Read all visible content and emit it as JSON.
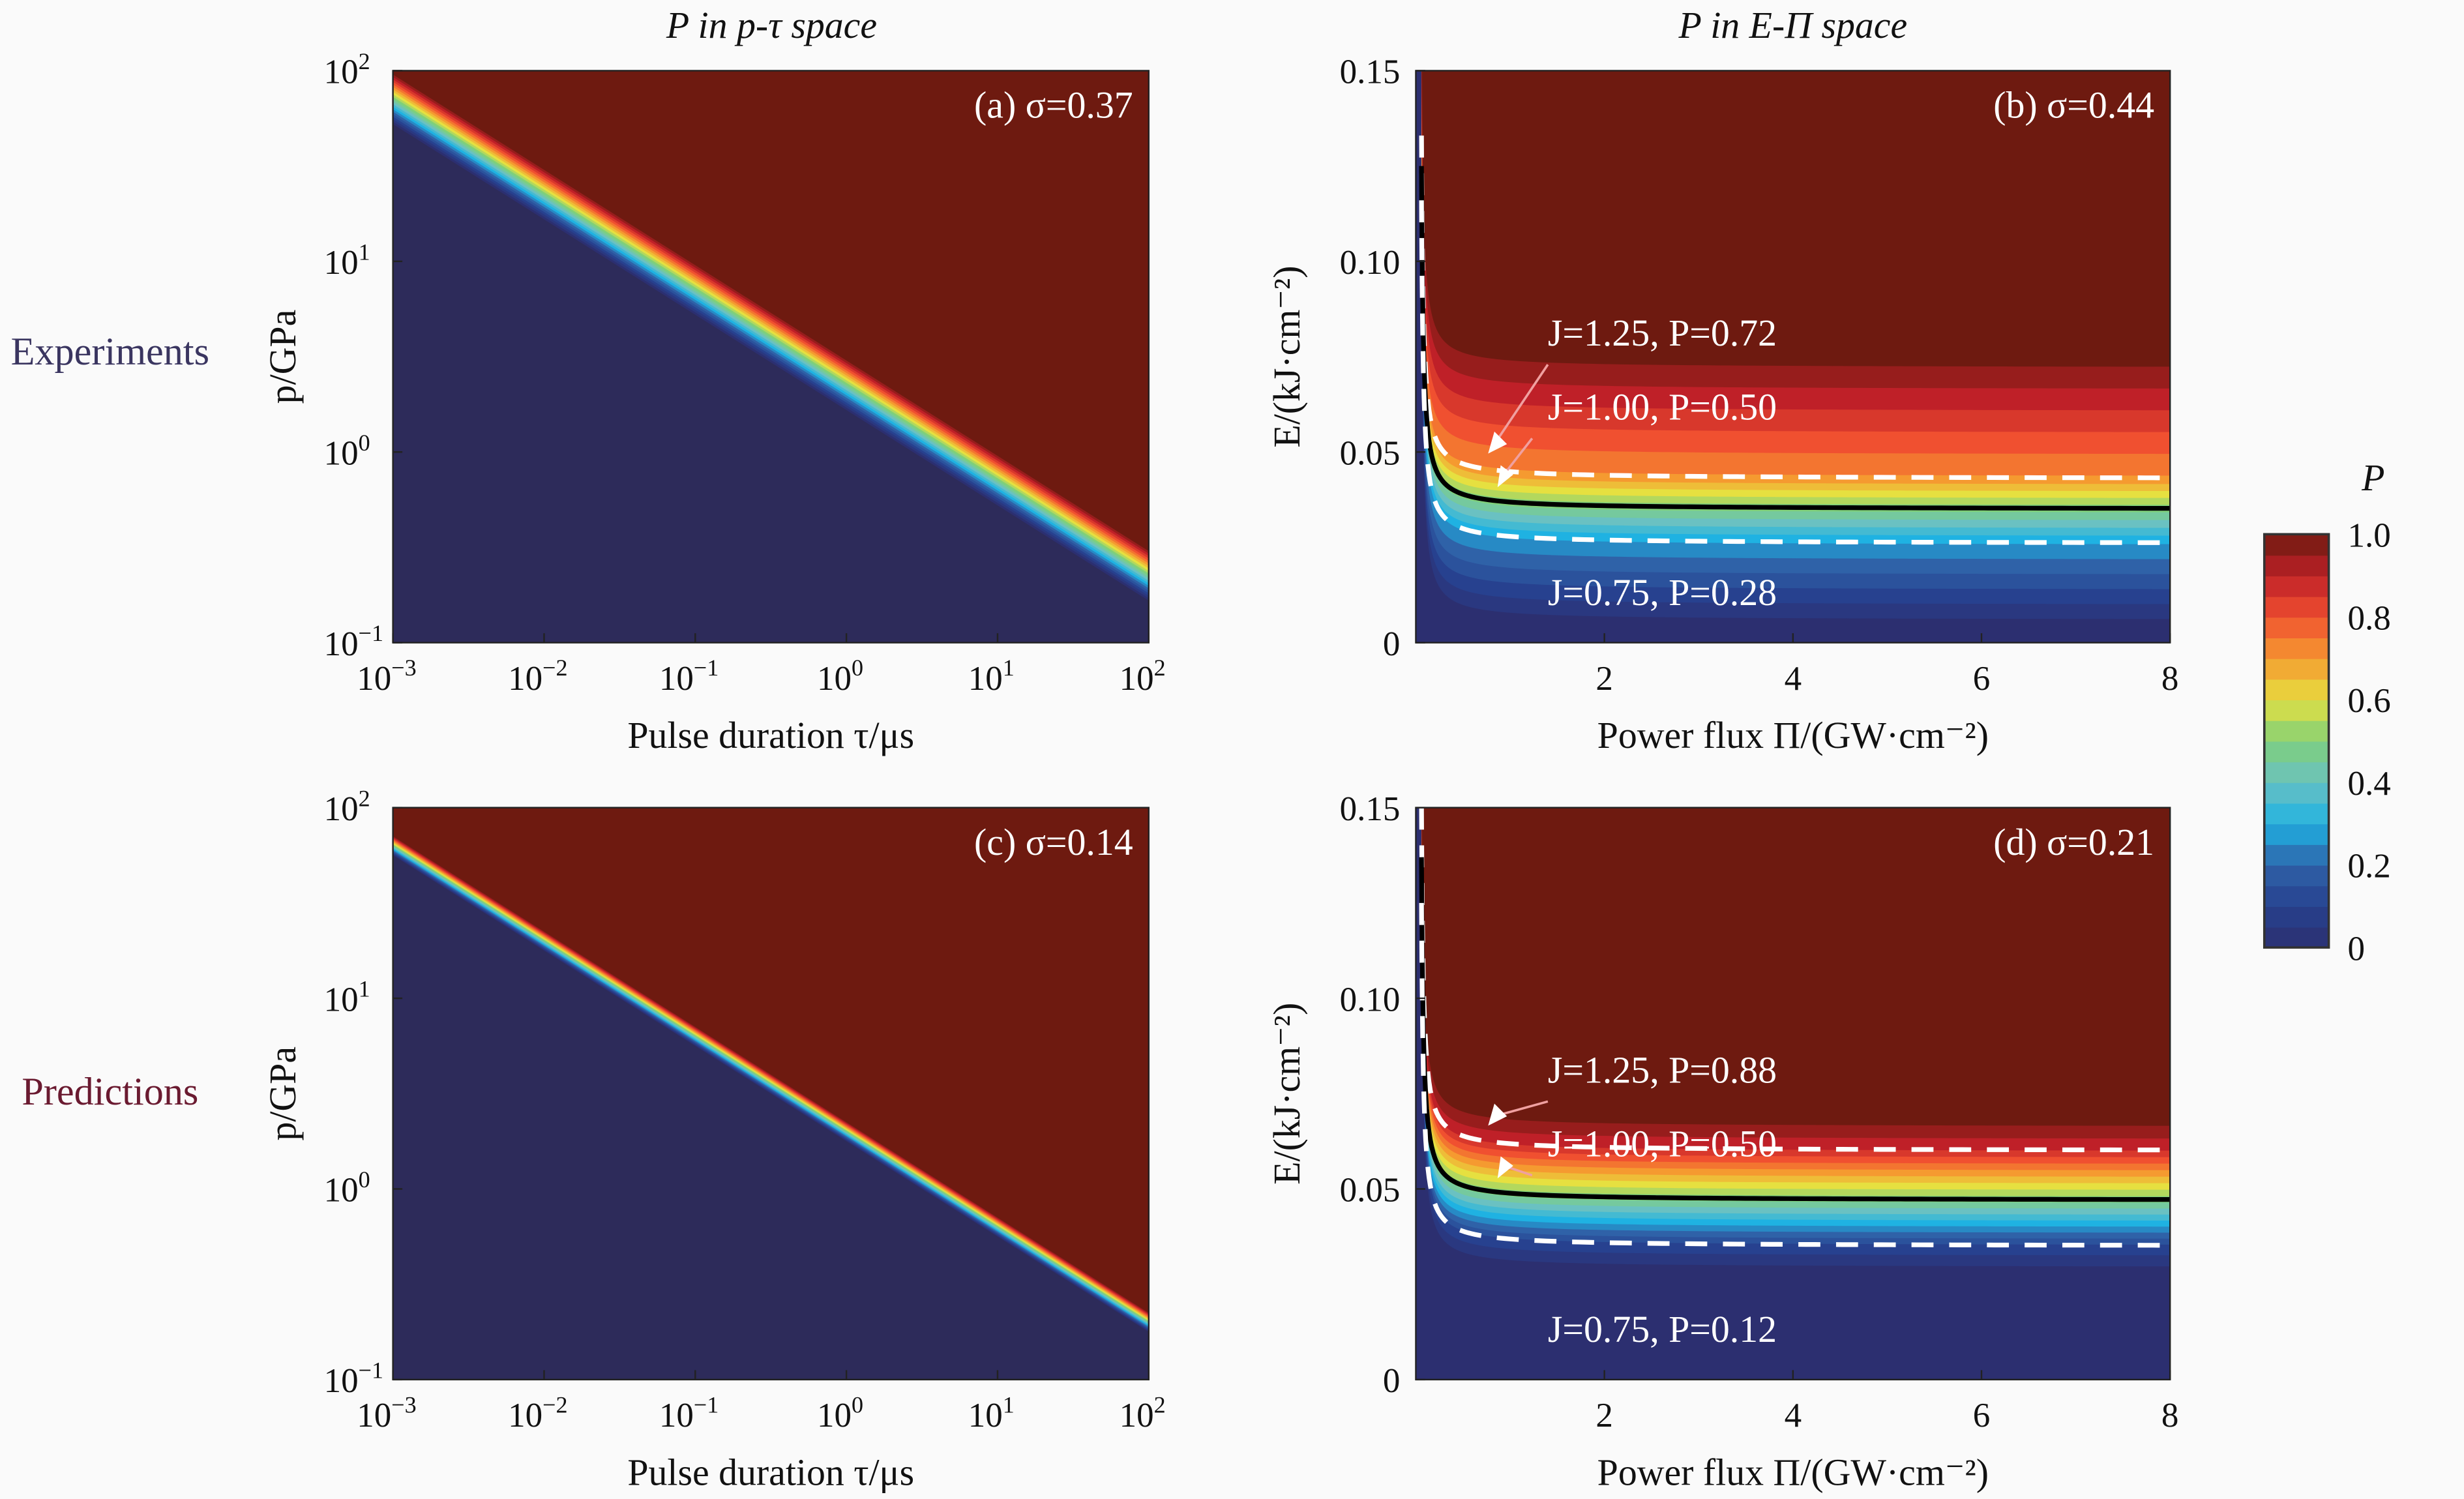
{
  "figure": {
    "row_labels": [
      {
        "text": "Experiments",
        "color": "#3a3560"
      },
      {
        "text": "Predictions",
        "color": "#6a1a30"
      }
    ],
    "column_titles": [
      "P in p-τ space",
      "P in E-Π space"
    ]
  },
  "colormap": {
    "stops": [
      [
        0,
        "#2c2f70"
      ],
      [
        0.1,
        "#27418f"
      ],
      [
        0.2,
        "#2f62a8"
      ],
      [
        0.3,
        "#1fb2e2"
      ],
      [
        0.4,
        "#6ac1c2"
      ],
      [
        0.5,
        "#7fd07a"
      ],
      [
        0.6,
        "#e6e040"
      ],
      [
        0.7,
        "#f59a30"
      ],
      [
        0.8,
        "#f05030"
      ],
      [
        0.9,
        "#bf2028"
      ],
      [
        1.0,
        "#6e1a10"
      ]
    ],
    "background_low": "#2d2b5a",
    "background_high": "#6e1a10"
  },
  "colorbar": {
    "title": "P",
    "ticks": [
      "0",
      "0.2",
      "0.4",
      "0.6",
      "0.8",
      "1.0"
    ],
    "range": [
      0,
      1
    ],
    "levels": 20
  },
  "chart_data": [
    {
      "id": "a",
      "type": "heatmap",
      "scale": "log-log",
      "panel_label": "(a) σ=0.37",
      "title": "P in p-τ space",
      "xlabel": "Pulse duration τ/μs",
      "ylabel": "p/GPa",
      "xlim_log10": [
        -3,
        2
      ],
      "ylim_log10": [
        -1,
        2
      ],
      "x_ticks": [
        {
          "base": "10",
          "exp": "−3"
        },
        {
          "base": "10",
          "exp": "−2"
        },
        {
          "base": "10",
          "exp": "−1"
        },
        {
          "base": "10",
          "exp": "0"
        },
        {
          "base": "10",
          "exp": "1"
        },
        {
          "base": "10",
          "exp": "2"
        }
      ],
      "y_ticks": [
        {
          "base": "10",
          "exp": "−1"
        },
        {
          "base": "10",
          "exp": "0"
        },
        {
          "base": "10",
          "exp": "1"
        },
        {
          "base": "10",
          "exp": "2"
        }
      ],
      "transition": {
        "log10_p_at_tau_min": 1.85,
        "slope": -0.5,
        "band_width_decades": 0.26
      }
    },
    {
      "id": "b",
      "type": "heatmap",
      "panel_label": "(b) σ=0.44",
      "title": "P in E-Π space",
      "xlabel": "Power flux Π/(GW·cm⁻²)",
      "ylabel": "E/(kJ·cm⁻²)",
      "xlim": [
        0,
        8
      ],
      "ylim": [
        0,
        0.15
      ],
      "x_ticks": [
        "2",
        "4",
        "6",
        "8"
      ],
      "x_tick_values": [
        2,
        4,
        6,
        8
      ],
      "y_ticks": [
        "0",
        "0.05",
        "0.10",
        "0.15"
      ],
      "y_tick_values": [
        0,
        0.05,
        0.1,
        0.15
      ],
      "contour_profile": [
        [
          0,
          0.004
        ],
        [
          0.28,
          0.026
        ],
        [
          0.5,
          0.035
        ],
        [
          0.72,
          0.043
        ],
        [
          1,
          0.075
        ]
      ],
      "curves": [
        {
          "J": "1.25",
          "P": "0.72",
          "E_inf": 0.043,
          "style": "dashed",
          "label": "J=1.25, P=0.72"
        },
        {
          "J": "1.00",
          "P": "0.50",
          "E_inf": 0.035,
          "style": "solid",
          "label": "J=1.00, P=0.50"
        },
        {
          "J": "0.75",
          "P": "0.28",
          "E_inf": 0.026,
          "style": "dashed",
          "label": "J=0.75, P=0.28"
        }
      ]
    },
    {
      "id": "c",
      "type": "heatmap",
      "scale": "log-log",
      "panel_label": "(c) σ=0.14",
      "title": "",
      "xlabel": "Pulse duration τ/μs",
      "ylabel": "p/GPa",
      "xlim_log10": [
        -3,
        2
      ],
      "ylim_log10": [
        -1,
        2
      ],
      "x_ticks": [
        {
          "base": "10",
          "exp": "−3"
        },
        {
          "base": "10",
          "exp": "−2"
        },
        {
          "base": "10",
          "exp": "−1"
        },
        {
          "base": "10",
          "exp": "0"
        },
        {
          "base": "10",
          "exp": "1"
        },
        {
          "base": "10",
          "exp": "2"
        }
      ],
      "y_ticks": [
        {
          "base": "10",
          "exp": "−1"
        },
        {
          "base": "10",
          "exp": "0"
        },
        {
          "base": "10",
          "exp": "1"
        },
        {
          "base": "10",
          "exp": "2"
        }
      ],
      "transition": {
        "log10_p_at_tau_min": 1.8,
        "slope": -0.5,
        "band_width_decades": 0.1
      }
    },
    {
      "id": "d",
      "type": "heatmap",
      "panel_label": "(d) σ=0.21",
      "title": "",
      "xlabel": "Power flux Π/(GW·cm⁻²)",
      "ylabel": "E/(kJ·cm⁻²)",
      "xlim": [
        0,
        8
      ],
      "ylim": [
        0,
        0.15
      ],
      "x_ticks": [
        "2",
        "4",
        "6",
        "8"
      ],
      "x_tick_values": [
        2,
        4,
        6,
        8
      ],
      "y_ticks": [
        "0",
        "0.05",
        "0.10",
        "0.15"
      ],
      "y_tick_values": [
        0,
        0.05,
        0.1,
        0.15
      ],
      "contour_profile": [
        [
          0,
          0.028
        ],
        [
          0.12,
          0.035
        ],
        [
          0.5,
          0.047
        ],
        [
          0.88,
          0.06
        ],
        [
          1,
          0.068
        ]
      ],
      "curves": [
        {
          "J": "1.25",
          "P": "0.88",
          "E_inf": 0.06,
          "style": "dashed",
          "label": "J=1.25, P=0.88"
        },
        {
          "J": "1.00",
          "P": "0.50",
          "E_inf": 0.047,
          "style": "solid",
          "label": "J=1.00, P=0.50"
        },
        {
          "J": "0.75",
          "P": "0.12",
          "E_inf": 0.035,
          "style": "dashed",
          "label": "J=0.75, P=0.12"
        }
      ]
    }
  ]
}
